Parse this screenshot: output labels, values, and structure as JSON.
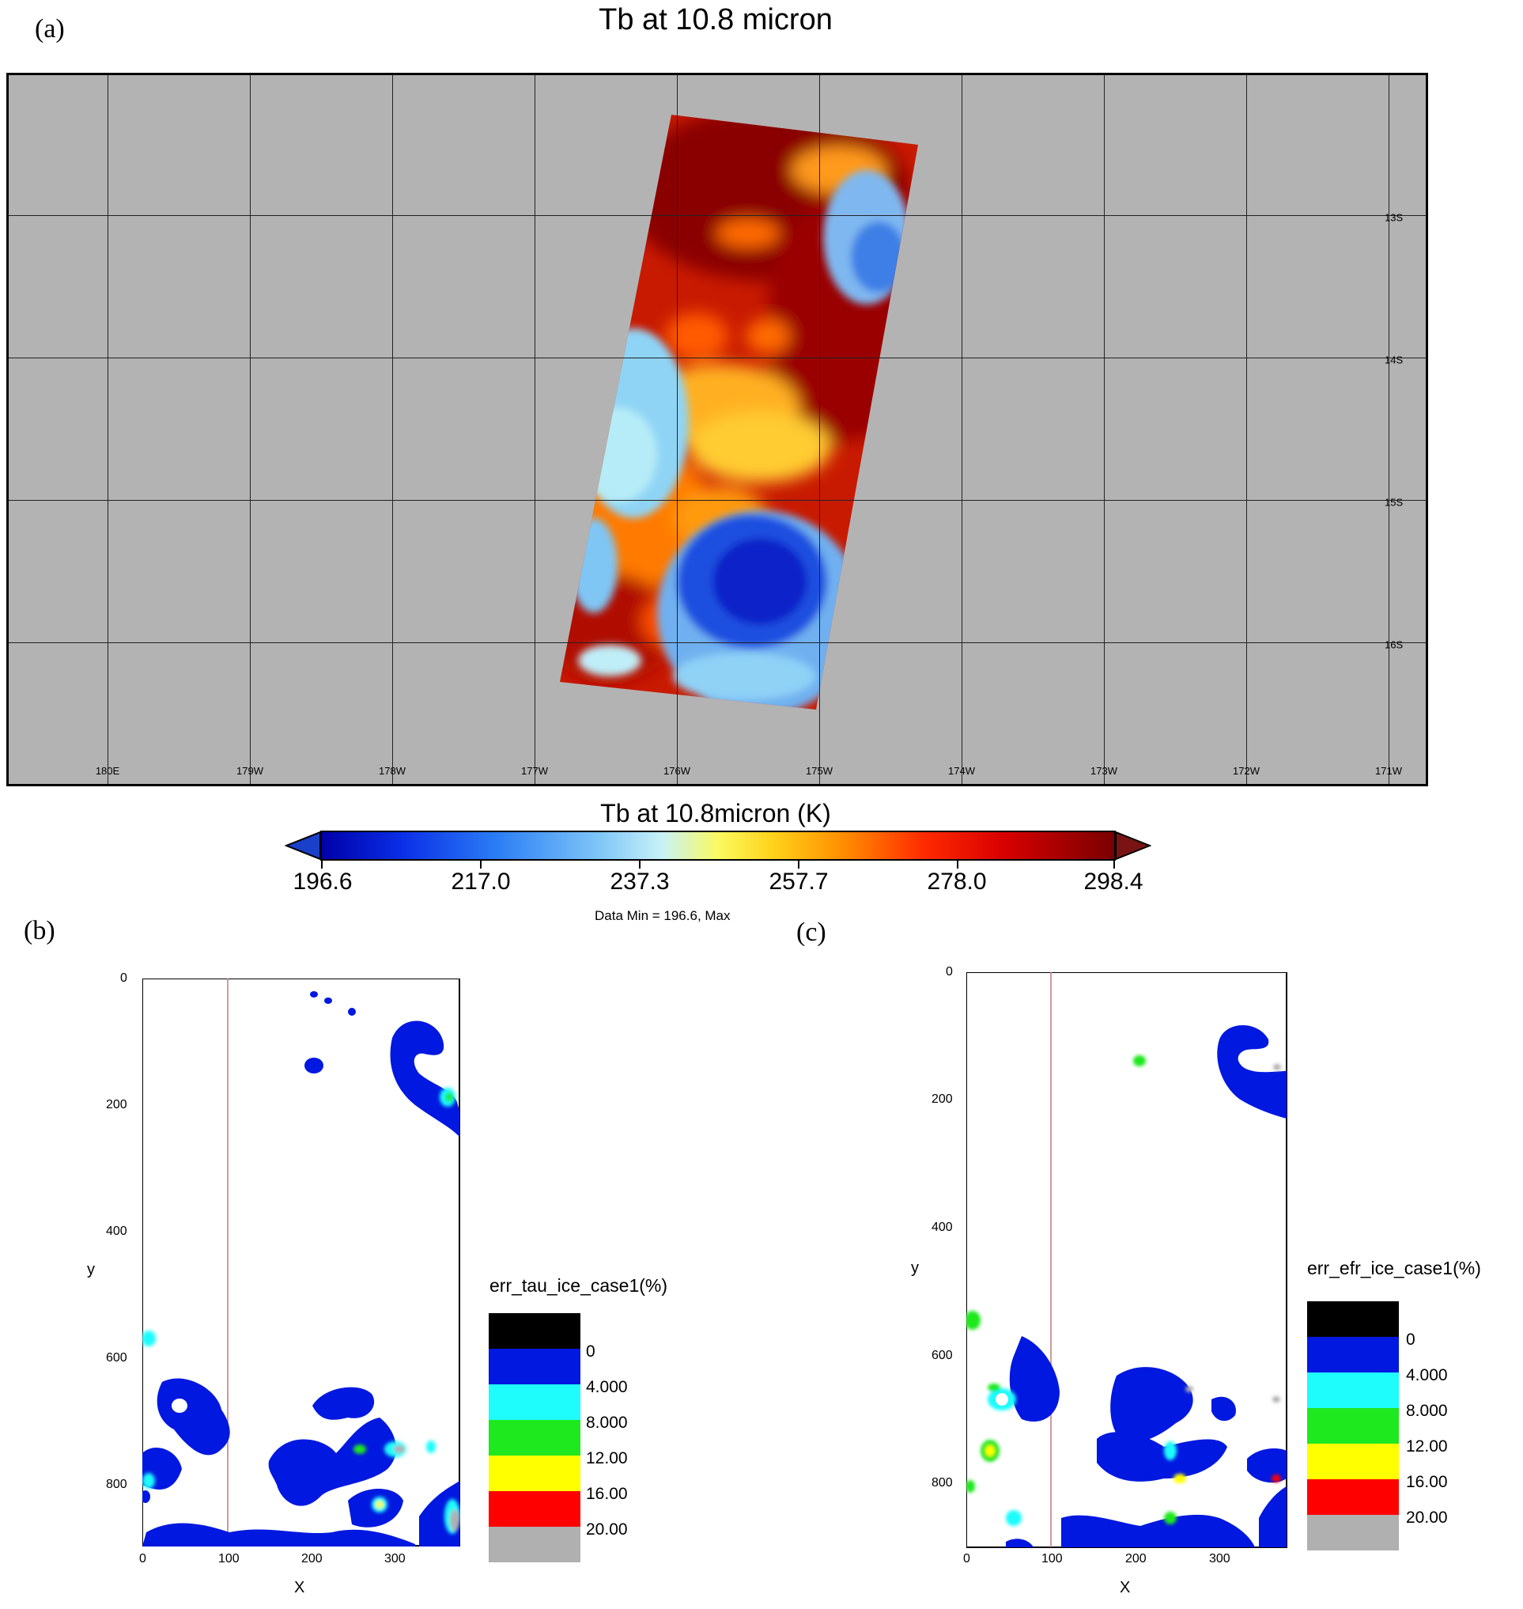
{
  "panels": {
    "a": {
      "label": "(a)",
      "title": "Tb at 10.8 micron",
      "lon_labels": [
        "180E",
        "179W",
        "178W",
        "177W",
        "176W",
        "175W",
        "174W",
        "173W",
        "172W",
        "171W"
      ],
      "lat_labels": [
        "13S",
        "14S",
        "15S",
        "16S"
      ],
      "colorbar": {
        "title": "Tb at 10.8micron (K)",
        "ticks": [
          "196.6",
          "217.0",
          "237.3",
          "257.7",
          "278.0",
          "298.4"
        ],
        "note": "Data Min = 196.6, Max"
      }
    },
    "b": {
      "label": "(b)",
      "xlabel": "X",
      "ylabel": "y",
      "xticks": [
        "0",
        "100",
        "200",
        "300"
      ],
      "yticks": [
        "0",
        "200",
        "400",
        "600",
        "800"
      ],
      "legend_title": "err_tau_ice_case1(%)",
      "legend_values": [
        "0",
        "4.000",
        "8.000",
        "12.00",
        "16.00",
        "20.00"
      ]
    },
    "c": {
      "label": "(c)",
      "xlabel": "X",
      "ylabel": "y",
      "xticks": [
        "0",
        "100",
        "200",
        "300"
      ],
      "yticks": [
        "0",
        "200",
        "400",
        "600",
        "800"
      ],
      "legend_title": "err_efr_ice_case1(%)",
      "legend_values": [
        "0",
        "4.000",
        "8.000",
        "12.00",
        "16.00",
        "20.00"
      ]
    }
  },
  "legend_colors": [
    "#000000",
    "#0018e0",
    "#1efcfc",
    "#1ee81e",
    "#ffff00",
    "#ff0000",
    "#b0b0b0"
  ],
  "chart_data": [
    {
      "type": "heatmap",
      "title": "Tb at 10.8 micron",
      "colorbar_label": "Tb at 10.8micron (K)",
      "value_range": [
        196.6,
        298.4
      ],
      "x_axis": "longitude",
      "y_axis": "latitude",
      "lon_range": [
        "180E",
        "171W"
      ],
      "lat_range": [
        "13S",
        "16S"
      ],
      "colormap": "blue-cyan-yellow-red"
    },
    {
      "type": "heatmap",
      "legend_title": "err_tau_ice_case1(%)",
      "levels": [
        0,
        4,
        8,
        12,
        16,
        20
      ],
      "xlabel": "X",
      "ylabel": "y",
      "xlim": [
        0,
        380
      ],
      "ylim": [
        0,
        900
      ]
    },
    {
      "type": "heatmap",
      "legend_title": "err_efr_ice_case1(%)",
      "levels": [
        0,
        4,
        8,
        12,
        16,
        20
      ],
      "xlabel": "X",
      "ylabel": "y",
      "xlim": [
        0,
        380
      ],
      "ylim": [
        0,
        900
      ]
    }
  ]
}
